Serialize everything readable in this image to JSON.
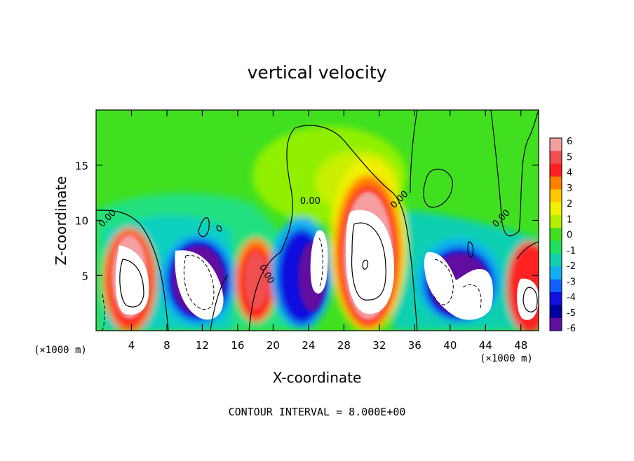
{
  "chart_data": {
    "type": "heatmap",
    "title": "vertical velocity",
    "xlabel": "X-coordinate",
    "ylabel": "Z-coordinate",
    "x_unit_left": "(×1000 m)",
    "x_unit_right": "(×1000 m)",
    "footer": "CONTOUR INTERVAL = 8.000E+00",
    "xlim": [
      0,
      50
    ],
    "ylim": [
      0,
      20
    ],
    "x_ticks": [
      4,
      8,
      12,
      16,
      20,
      24,
      28,
      32,
      36,
      40,
      44,
      48
    ],
    "y_ticks": [
      5,
      10,
      15
    ],
    "colorbar": {
      "labels": [
        "6",
        "5",
        "4",
        "3",
        "2",
        "1",
        "0",
        "-1",
        "-2",
        "-3",
        "-4",
        "-5",
        "-6"
      ],
      "colors": [
        "#f4a0a0",
        "#f05050",
        "#ff2020",
        "#ff8000",
        "#ffc800",
        "#f0f000",
        "#b0f000",
        "#40e020",
        "#20e060",
        "#10d0b0",
        "#10b0f0",
        "#1060ff",
        "#1010e0",
        "#0000a0",
        "#6010a0"
      ]
    },
    "contour_labels": [
      {
        "text": "0.00",
        "x": 1.5,
        "y": 10
      },
      {
        "text": "0.00",
        "x": 19,
        "y": 5
      },
      {
        "text": "0.00",
        "x": 24.2,
        "y": 11.5
      },
      {
        "text": "0.00",
        "x": 34.5,
        "y": 11.7
      },
      {
        "text": "0.00",
        "x": 46,
        "y": 10
      }
    ],
    "cells_updrafts": [
      {
        "x": 3.5,
        "z": 4.8,
        "sign": "up"
      },
      {
        "x": 10.5,
        "z": 4.3,
        "sign": "down"
      },
      {
        "x": 17.5,
        "z": 4.0,
        "sign": "up"
      },
      {
        "x": 21.5,
        "z": 4.5,
        "sign": "down"
      },
      {
        "x": 25.0,
        "z": 5.0,
        "sign": "down"
      },
      {
        "x": 30.5,
        "z": 6.5,
        "sign": "up"
      },
      {
        "x": 40.0,
        "z": 4.0,
        "sign": "down"
      },
      {
        "x": 48.5,
        "z": 3.0,
        "sign": "up"
      }
    ]
  }
}
